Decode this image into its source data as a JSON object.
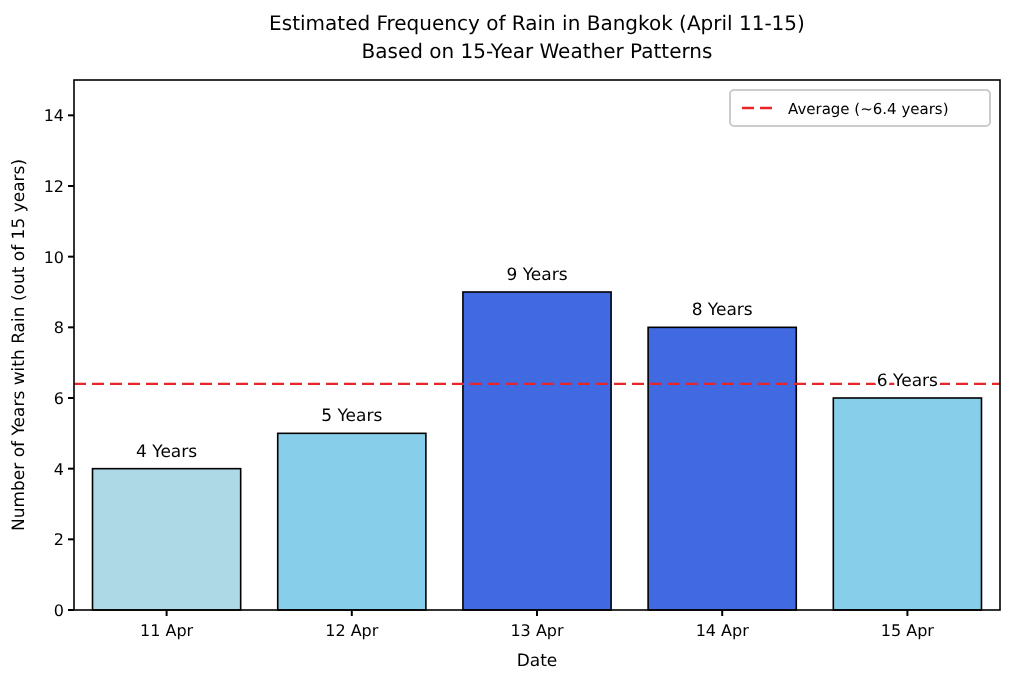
{
  "chart_data": {
    "type": "bar",
    "title": "Estimated Frequency of Rain in Bangkok (April 11-15)",
    "subtitle": "Based on 15-Year Weather Patterns",
    "xlabel": "Date",
    "ylabel": "Number of Years with Rain (out of 15 years)",
    "categories": [
      "11 Apr",
      "12 Apr",
      "13 Apr",
      "14 Apr",
      "15 Apr"
    ],
    "values": [
      4,
      5,
      9,
      8,
      6
    ],
    "colors": [
      "#add8e6",
      "#87ceeb",
      "#4169e1",
      "#4169e1",
      "#87ceeb"
    ],
    "value_labels": [
      "4 Years",
      "5 Years",
      "9 Years",
      "8 Years",
      "6 Years"
    ],
    "ylim": [
      0,
      15
    ],
    "yticks": [
      0,
      2,
      4,
      6,
      8,
      10,
      12,
      14
    ],
    "ref_lines": [
      {
        "axis": "y",
        "value": 6.4,
        "label": "Average (~6.4 years)",
        "color": "#e8262a",
        "line_style": "dashed"
      }
    ],
    "legend": "top right"
  }
}
